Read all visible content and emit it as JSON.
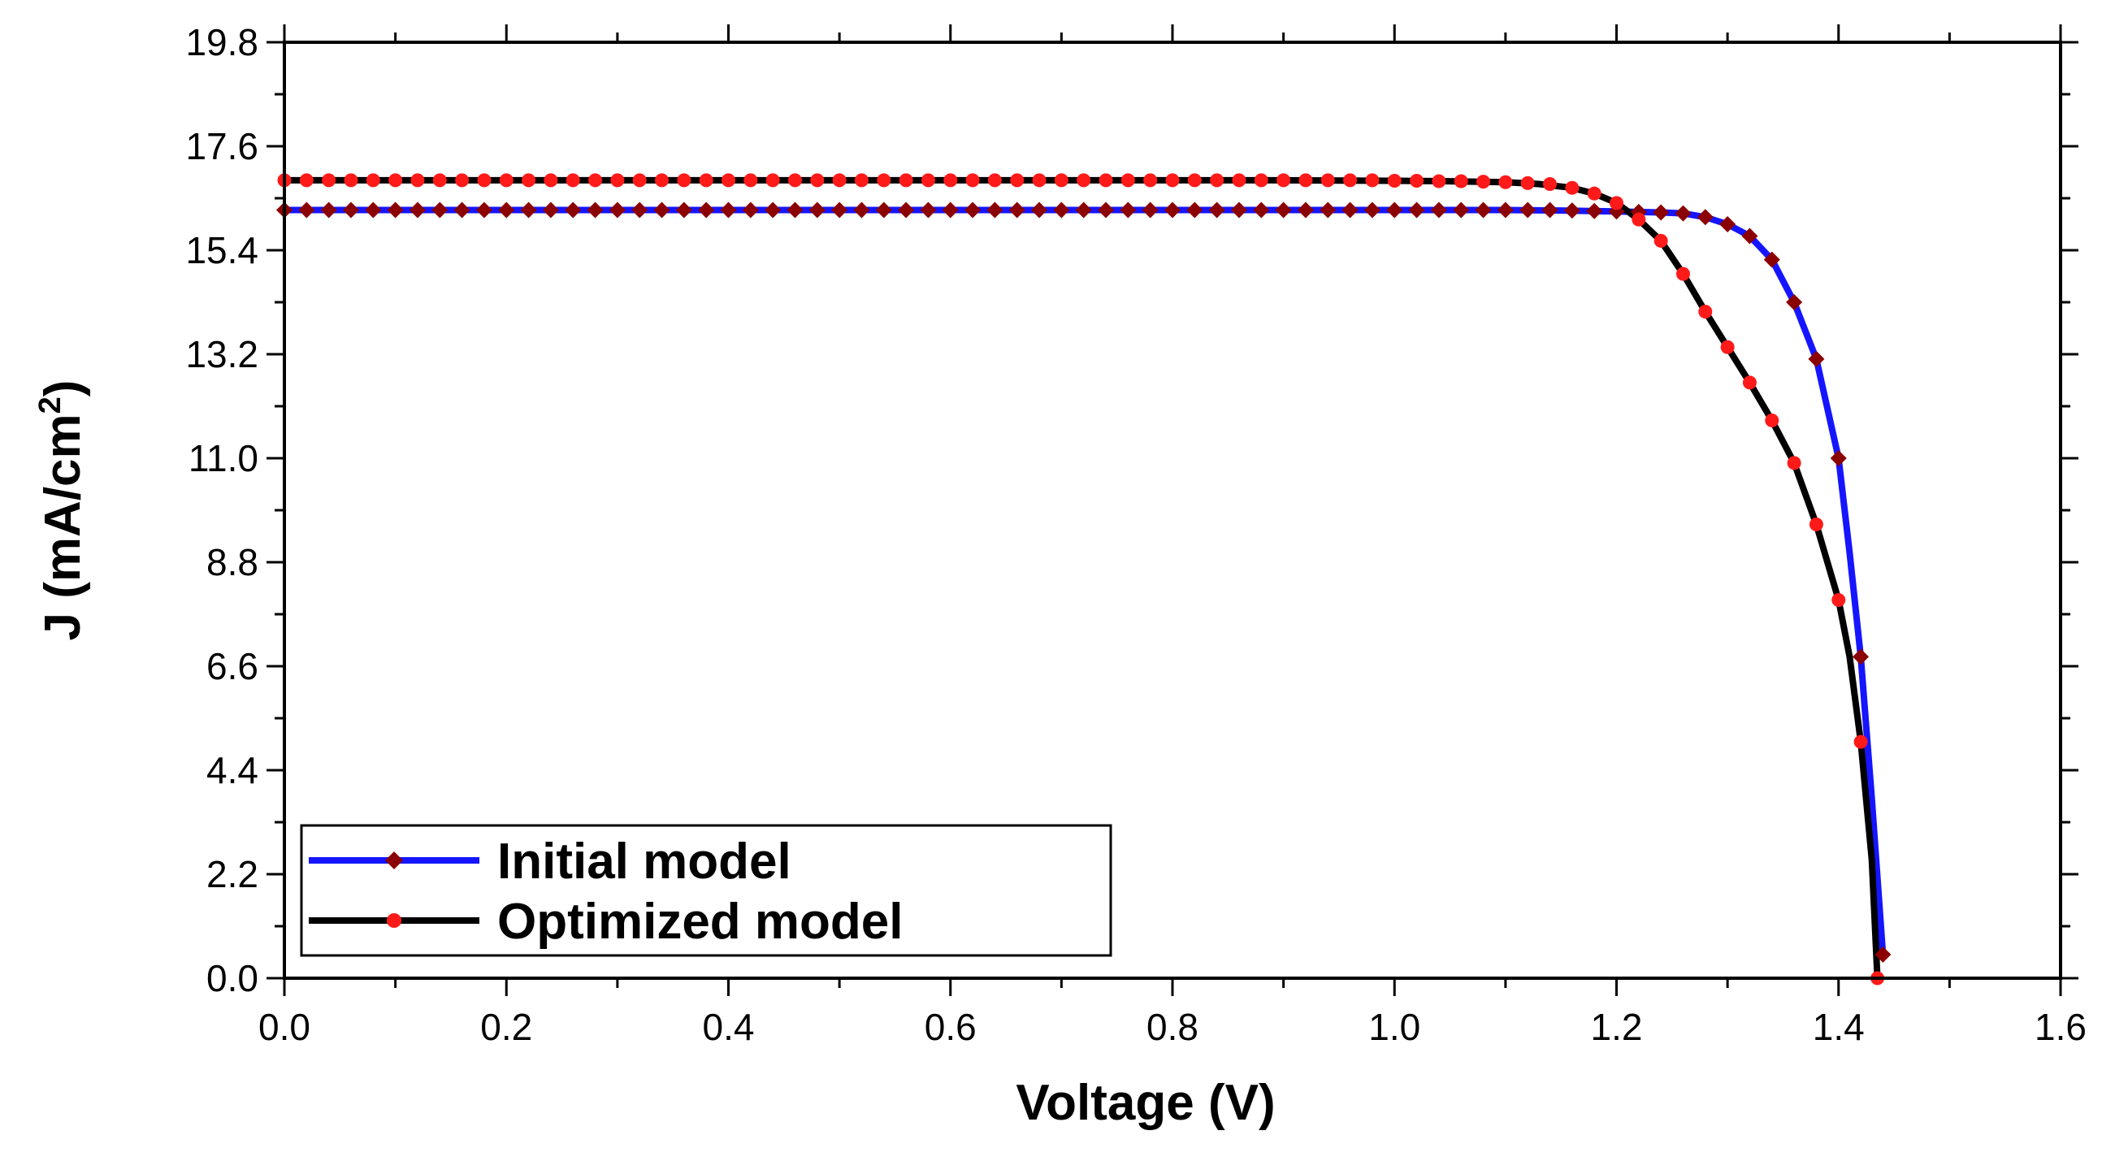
{
  "chart_data": {
    "type": "line",
    "title": "",
    "xlabel": "Voltage (V)",
    "ylabel_main": "J (mA/cm",
    "ylabel_sup": "2",
    "ylabel_close": ")",
    "xlim": [
      0.0,
      1.6
    ],
    "ylim": [
      0.0,
      19.8
    ],
    "xticks": [
      "0.0",
      "0.2",
      "0.4",
      "0.6",
      "0.8",
      "1.0",
      "1.2",
      "1.4",
      "1.6"
    ],
    "yticks": [
      "0.0",
      "2.2",
      "4.4",
      "6.6",
      "8.8",
      "11.0",
      "13.2",
      "15.4",
      "17.6",
      "19.8"
    ],
    "legend_position": "bottom-left",
    "series": [
      {
        "name": "Initial model",
        "line_color": "#1515ff",
        "marker_color": "#8b0000",
        "marker": "diamond",
        "x": [
          0.0,
          0.1,
          0.2,
          0.3,
          0.4,
          0.5,
          0.6,
          0.7,
          0.8,
          0.9,
          1.0,
          1.1,
          1.15,
          1.2,
          1.24,
          1.26,
          1.28,
          1.3,
          1.32,
          1.34,
          1.36,
          1.38,
          1.4,
          1.41,
          1.42,
          1.43,
          1.44
        ],
        "y": [
          16.25,
          16.25,
          16.25,
          16.25,
          16.25,
          16.25,
          16.25,
          16.25,
          16.25,
          16.25,
          16.25,
          16.25,
          16.24,
          16.22,
          16.2,
          16.18,
          16.1,
          15.95,
          15.7,
          15.2,
          14.3,
          13.1,
          11.0,
          9.0,
          6.8,
          3.8,
          0.5
        ],
        "marker_x": [
          0.0,
          0.02,
          0.04,
          0.06,
          0.08,
          0.1,
          0.12,
          0.14,
          0.16,
          0.18,
          0.2,
          0.22,
          0.24,
          0.26,
          0.28,
          0.3,
          0.32,
          0.34,
          0.36,
          0.38,
          0.4,
          0.42,
          0.44,
          0.46,
          0.48,
          0.5,
          0.52,
          0.54,
          0.56,
          0.58,
          0.6,
          0.62,
          0.64,
          0.66,
          0.68,
          0.7,
          0.72,
          0.74,
          0.76,
          0.78,
          0.8,
          0.82,
          0.84,
          0.86,
          0.88,
          0.9,
          0.92,
          0.94,
          0.96,
          0.98,
          1.0,
          1.02,
          1.04,
          1.06,
          1.08,
          1.1,
          1.12,
          1.14,
          1.16,
          1.18,
          1.2,
          1.22,
          1.24,
          1.26,
          1.28,
          1.3,
          1.32,
          1.34,
          1.36,
          1.38,
          1.4,
          1.42,
          1.44
        ],
        "marker_y": [
          16.25,
          16.25,
          16.25,
          16.25,
          16.25,
          16.25,
          16.25,
          16.25,
          16.25,
          16.25,
          16.25,
          16.25,
          16.25,
          16.25,
          16.25,
          16.25,
          16.25,
          16.25,
          16.25,
          16.25,
          16.25,
          16.25,
          16.25,
          16.25,
          16.25,
          16.25,
          16.25,
          16.25,
          16.25,
          16.25,
          16.25,
          16.25,
          16.25,
          16.25,
          16.25,
          16.25,
          16.25,
          16.25,
          16.25,
          16.25,
          16.25,
          16.25,
          16.25,
          16.25,
          16.25,
          16.25,
          16.25,
          16.25,
          16.25,
          16.25,
          16.25,
          16.25,
          16.25,
          16.25,
          16.25,
          16.25,
          16.25,
          16.25,
          16.24,
          16.23,
          16.22,
          16.21,
          16.2,
          16.18,
          16.1,
          15.95,
          15.7,
          15.2,
          14.3,
          13.1,
          11.0,
          6.8,
          0.5
        ]
      },
      {
        "name": "Optimized model",
        "line_color": "#000000",
        "marker_color": "#ff1a1a",
        "marker": "circle",
        "x": [
          0.0,
          0.1,
          0.2,
          0.3,
          0.4,
          0.5,
          0.6,
          0.7,
          0.8,
          0.9,
          1.0,
          1.05,
          1.1,
          1.13,
          1.16,
          1.18,
          1.2,
          1.22,
          1.24,
          1.26,
          1.28,
          1.3,
          1.32,
          1.34,
          1.36,
          1.38,
          1.4,
          1.41,
          1.42,
          1.43,
          1.435
        ],
        "y": [
          16.88,
          16.88,
          16.88,
          16.88,
          16.88,
          16.88,
          16.88,
          16.88,
          16.88,
          16.88,
          16.87,
          16.86,
          16.84,
          16.8,
          16.72,
          16.6,
          16.4,
          16.05,
          15.6,
          14.9,
          14.1,
          13.35,
          12.6,
          11.8,
          10.9,
          9.6,
          8.0,
          6.8,
          5.0,
          2.5,
          0.0
        ],
        "marker_x": [
          0.0,
          0.02,
          0.04,
          0.06,
          0.08,
          0.1,
          0.12,
          0.14,
          0.16,
          0.18,
          0.2,
          0.22,
          0.24,
          0.26,
          0.28,
          0.3,
          0.32,
          0.34,
          0.36,
          0.38,
          0.4,
          0.42,
          0.44,
          0.46,
          0.48,
          0.5,
          0.52,
          0.54,
          0.56,
          0.58,
          0.6,
          0.62,
          0.64,
          0.66,
          0.68,
          0.7,
          0.72,
          0.74,
          0.76,
          0.78,
          0.8,
          0.82,
          0.84,
          0.86,
          0.88,
          0.9,
          0.92,
          0.94,
          0.96,
          0.98,
          1.0,
          1.02,
          1.04,
          1.06,
          1.08,
          1.1,
          1.12,
          1.14,
          1.16,
          1.18,
          1.2,
          1.22,
          1.24,
          1.26,
          1.28,
          1.3,
          1.32,
          1.34,
          1.36,
          1.38,
          1.4,
          1.42,
          1.435
        ],
        "marker_y": [
          16.88,
          16.88,
          16.88,
          16.88,
          16.88,
          16.88,
          16.88,
          16.88,
          16.88,
          16.88,
          16.88,
          16.88,
          16.88,
          16.88,
          16.88,
          16.88,
          16.88,
          16.88,
          16.88,
          16.88,
          16.88,
          16.88,
          16.88,
          16.88,
          16.88,
          16.88,
          16.88,
          16.88,
          16.88,
          16.88,
          16.88,
          16.88,
          16.88,
          16.88,
          16.88,
          16.88,
          16.88,
          16.88,
          16.88,
          16.88,
          16.88,
          16.88,
          16.88,
          16.88,
          16.88,
          16.88,
          16.88,
          16.88,
          16.88,
          16.88,
          16.87,
          16.87,
          16.86,
          16.86,
          16.85,
          16.84,
          16.82,
          16.8,
          16.72,
          16.6,
          16.4,
          16.05,
          15.6,
          14.9,
          14.1,
          13.35,
          12.6,
          11.8,
          10.9,
          9.6,
          8.0,
          5.0,
          0.0
        ]
      }
    ]
  }
}
